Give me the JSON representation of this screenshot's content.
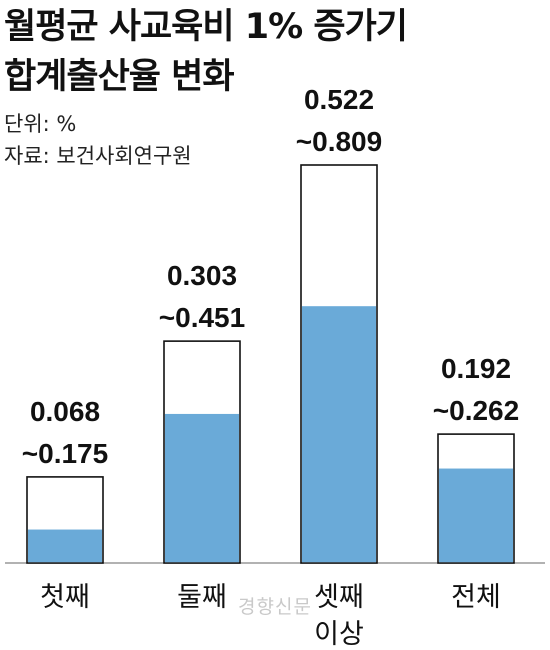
{
  "title_lines": [
    "월평균 사교육비 1% 증가기",
    "합계출산율 변화"
  ],
  "unit_label": "단위: %",
  "source_label": "자료: 보건사회연구원",
  "watermark": "경향신문",
  "colors": {
    "fill": "#6aaad8",
    "outline": "#111111",
    "baseline": "#999999",
    "text": "#111111"
  },
  "chart_data": {
    "type": "bar",
    "title": "월평균 사교육비 1% 증가기 합계출산율 변화",
    "ylabel": "단위: %",
    "categories": [
      [
        "첫째"
      ],
      [
        "둘째"
      ],
      [
        "셋째",
        "이상"
      ],
      [
        "전체"
      ]
    ],
    "series": [
      {
        "values": [
          0.068,
          0.303,
          0.522,
          0.192
        ]
      },
      {
        "values": [
          0.175,
          0.451,
          0.809,
          0.262
        ]
      }
    ],
    "labels": [
      [
        "0.068",
        "~0.175"
      ],
      [
        "0.303",
        "~0.451"
      ],
      [
        "0.522",
        "~0.809"
      ],
      [
        "0.192",
        "~0.262"
      ]
    ],
    "ylim": [
      0,
      0.809
    ],
    "grid": false,
    "legend": "none"
  }
}
